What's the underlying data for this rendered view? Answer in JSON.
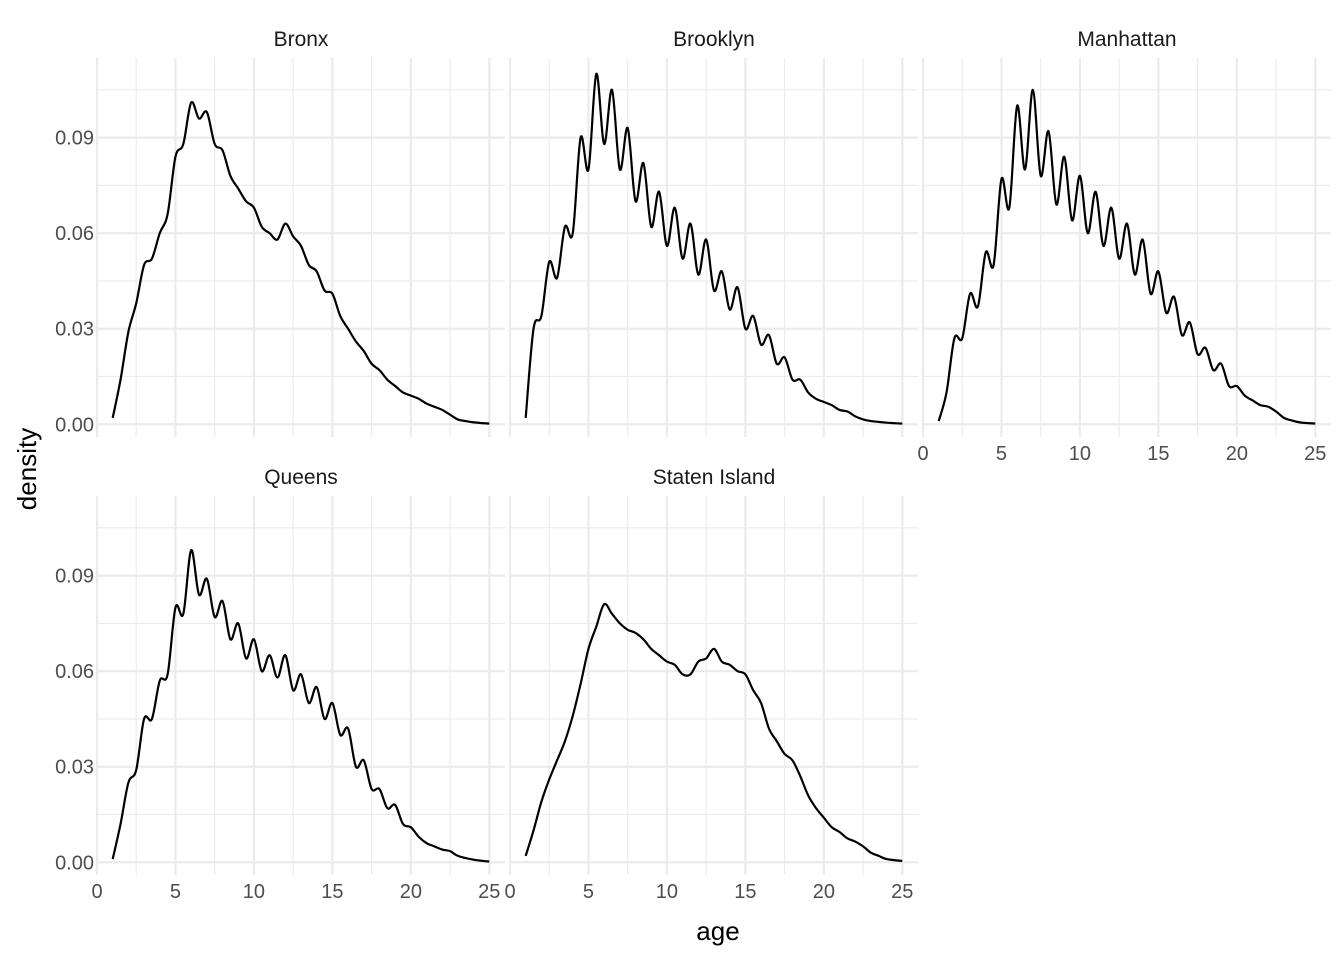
{
  "chart_data": {
    "type": "line",
    "title": "",
    "xlabel": "age",
    "ylabel": "density",
    "xlim": [
      0,
      26
    ],
    "ylim": [
      -0.004,
      0.115
    ],
    "x_ticks": [
      0,
      5,
      10,
      15,
      20,
      25
    ],
    "y_ticks": [
      0.0,
      0.03,
      0.06,
      0.09
    ],
    "x_tick_labels": [
      "0",
      "5",
      "10",
      "15",
      "20",
      "25"
    ],
    "y_tick_labels": [
      "0.00",
      "0.03",
      "0.06",
      "0.09"
    ],
    "grid": true,
    "legend": "none",
    "facets": [
      {
        "name": "Bronx",
        "x": [
          1,
          1.5,
          2,
          2.5,
          3,
          3.5,
          4,
          4.5,
          5,
          5.5,
          6,
          6.5,
          7,
          7.5,
          8,
          8.5,
          9,
          9.5,
          10,
          10.5,
          11,
          11.5,
          12,
          12.5,
          13,
          13.5,
          14,
          14.5,
          15,
          15.5,
          16,
          16.5,
          17,
          17.5,
          18,
          18.5,
          19,
          19.5,
          20,
          20.5,
          21,
          21.5,
          22,
          22.5,
          23,
          23.5,
          24,
          25
        ],
        "y": [
          0.002,
          0.014,
          0.029,
          0.038,
          0.05,
          0.052,
          0.06,
          0.066,
          0.084,
          0.088,
          0.101,
          0.096,
          0.098,
          0.088,
          0.086,
          0.078,
          0.074,
          0.07,
          0.068,
          0.062,
          0.06,
          0.058,
          0.063,
          0.059,
          0.056,
          0.05,
          0.048,
          0.042,
          0.041,
          0.034,
          0.03,
          0.026,
          0.023,
          0.019,
          0.017,
          0.014,
          0.012,
          0.01,
          0.009,
          0.008,
          0.0065,
          0.0055,
          0.0045,
          0.003,
          0.0015,
          0.001,
          0.0006,
          0.0002
        ]
      },
      {
        "name": "Brooklyn",
        "x": [
          1,
          1.5,
          2,
          2.5,
          3,
          3.5,
          4,
          4.5,
          5,
          5.5,
          6,
          6.5,
          7,
          7.5,
          8,
          8.5,
          9,
          9.5,
          10,
          10.5,
          11,
          11.5,
          12,
          12.5,
          13,
          13.5,
          14,
          14.5,
          15,
          15.5,
          16,
          16.5,
          17,
          17.5,
          18,
          18.5,
          19,
          19.5,
          20,
          20.5,
          21,
          21.5,
          22,
          22.5,
          23,
          24,
          25
        ],
        "y": [
          0.002,
          0.03,
          0.034,
          0.051,
          0.046,
          0.062,
          0.06,
          0.09,
          0.08,
          0.11,
          0.088,
          0.105,
          0.08,
          0.093,
          0.07,
          0.082,
          0.062,
          0.073,
          0.056,
          0.068,
          0.052,
          0.063,
          0.047,
          0.058,
          0.042,
          0.048,
          0.036,
          0.043,
          0.03,
          0.034,
          0.025,
          0.028,
          0.019,
          0.021,
          0.014,
          0.014,
          0.01,
          0.008,
          0.007,
          0.006,
          0.0045,
          0.004,
          0.0025,
          0.0015,
          0.001,
          0.0005,
          0.0002
        ]
      },
      {
        "name": "Manhattan",
        "x": [
          1,
          1.5,
          2,
          2.5,
          3,
          3.5,
          4,
          4.5,
          5,
          5.5,
          6,
          6.5,
          7,
          7.5,
          8,
          8.5,
          9,
          9.5,
          10,
          10.5,
          11,
          11.5,
          12,
          12.5,
          13,
          13.5,
          14,
          14.5,
          15,
          15.5,
          16,
          16.5,
          17,
          17.5,
          18,
          18.5,
          19,
          19.5,
          20,
          20.5,
          21,
          21.5,
          22,
          22.5,
          23,
          23.5,
          24,
          25
        ],
        "y": [
          0.001,
          0.01,
          0.027,
          0.027,
          0.041,
          0.037,
          0.054,
          0.05,
          0.077,
          0.068,
          0.1,
          0.08,
          0.105,
          0.078,
          0.092,
          0.069,
          0.084,
          0.064,
          0.078,
          0.06,
          0.073,
          0.056,
          0.068,
          0.052,
          0.063,
          0.047,
          0.058,
          0.041,
          0.048,
          0.035,
          0.04,
          0.028,
          0.032,
          0.022,
          0.024,
          0.017,
          0.019,
          0.012,
          0.012,
          0.009,
          0.0075,
          0.006,
          0.0055,
          0.004,
          0.002,
          0.0012,
          0.0006,
          0.0002
        ]
      },
      {
        "name": "Queens",
        "x": [
          1,
          1.5,
          2,
          2.5,
          3,
          3.5,
          4,
          4.5,
          5,
          5.5,
          6,
          6.5,
          7,
          7.5,
          8,
          8.5,
          9,
          9.5,
          10,
          10.5,
          11,
          11.5,
          12,
          12.5,
          13,
          13.5,
          14,
          14.5,
          15,
          15.5,
          16,
          16.5,
          17,
          17.5,
          18,
          18.5,
          19,
          19.5,
          20,
          20.5,
          21,
          21.5,
          22,
          22.5,
          23,
          24,
          25
        ],
        "y": [
          0.001,
          0.012,
          0.025,
          0.029,
          0.045,
          0.045,
          0.057,
          0.059,
          0.08,
          0.078,
          0.098,
          0.084,
          0.089,
          0.077,
          0.082,
          0.07,
          0.075,
          0.064,
          0.07,
          0.06,
          0.065,
          0.058,
          0.065,
          0.054,
          0.059,
          0.05,
          0.055,
          0.045,
          0.05,
          0.04,
          0.042,
          0.03,
          0.032,
          0.023,
          0.023,
          0.017,
          0.018,
          0.012,
          0.011,
          0.008,
          0.006,
          0.005,
          0.004,
          0.0035,
          0.002,
          0.0008,
          0.0002
        ]
      },
      {
        "name": "Staten Island",
        "x": [
          1,
          1.5,
          2,
          2.5,
          3,
          3.5,
          4,
          4.5,
          5,
          5.5,
          6,
          6.5,
          7,
          7.5,
          8,
          8.5,
          9,
          9.5,
          10,
          10.5,
          11,
          11.5,
          12,
          12.5,
          13,
          13.5,
          14,
          14.5,
          15,
          15.5,
          16,
          16.5,
          17,
          17.5,
          18,
          18.5,
          19,
          19.5,
          20,
          20.5,
          21,
          21.5,
          22,
          22.5,
          23,
          23.5,
          24,
          25
        ],
        "y": [
          0.002,
          0.01,
          0.019,
          0.026,
          0.032,
          0.038,
          0.046,
          0.056,
          0.067,
          0.074,
          0.081,
          0.078,
          0.075,
          0.073,
          0.072,
          0.07,
          0.067,
          0.065,
          0.063,
          0.062,
          0.059,
          0.059,
          0.063,
          0.064,
          0.067,
          0.063,
          0.062,
          0.06,
          0.059,
          0.054,
          0.05,
          0.042,
          0.038,
          0.034,
          0.032,
          0.027,
          0.021,
          0.017,
          0.014,
          0.011,
          0.0095,
          0.0075,
          0.0065,
          0.005,
          0.003,
          0.002,
          0.001,
          0.0004
        ]
      }
    ]
  }
}
